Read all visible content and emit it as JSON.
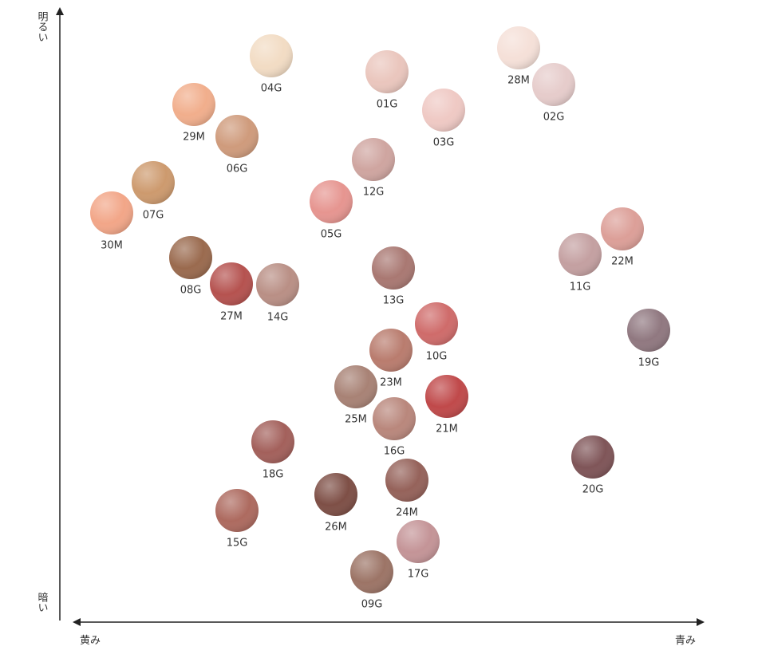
{
  "axes": {
    "top": "明るい",
    "bottom": "暗い",
    "left": "黄み",
    "right": "青み"
  },
  "nodes": [
    {
      "label": "04G",
      "color": "#f2dcc4"
    },
    {
      "label": "01G",
      "color": "#eac6bd"
    },
    {
      "label": "03G",
      "color": "#efc9c4"
    },
    {
      "label": "28M",
      "color": "#f5e0d8"
    },
    {
      "label": "02G",
      "color": "#e6cccb"
    },
    {
      "label": "29M",
      "color": "#f1ae8c"
    },
    {
      "label": "06G",
      "color": "#cf9b7c"
    },
    {
      "label": "12G",
      "color": "#cfa5a0"
    },
    {
      "label": "07G",
      "color": "#cd9a6e"
    },
    {
      "label": "05G",
      "color": "#e69590"
    },
    {
      "label": "30M",
      "color": "#f2a688"
    },
    {
      "label": "11G",
      "color": "#c4a0a1"
    },
    {
      "label": "22M",
      "color": "#dc9f98"
    },
    {
      "label": "08G",
      "color": "#9a6a4e"
    },
    {
      "label": "27M",
      "color": "#b5524f"
    },
    {
      "label": "14G",
      "color": "#b98f85"
    },
    {
      "label": "13G",
      "color": "#a97872"
    },
    {
      "label": "10G",
      "color": "#cf6b6a"
    },
    {
      "label": "19G",
      "color": "#907880"
    },
    {
      "label": "23M",
      "color": "#b97c6e"
    },
    {
      "label": "25M",
      "color": "#a88275"
    },
    {
      "label": "21M",
      "color": "#c0494a"
    },
    {
      "label": "16G",
      "color": "#b9877c"
    },
    {
      "label": "18G",
      "color": "#a3605b"
    },
    {
      "label": "20G",
      "color": "#7f5558"
    },
    {
      "label": "24M",
      "color": "#95625a"
    },
    {
      "label": "26M",
      "color": "#7e4f46"
    },
    {
      "label": "15G",
      "color": "#ad6a5f"
    },
    {
      "label": "17G",
      "color": "#c49497"
    },
    {
      "label": "09G",
      "color": "#9c7466"
    }
  ]
}
